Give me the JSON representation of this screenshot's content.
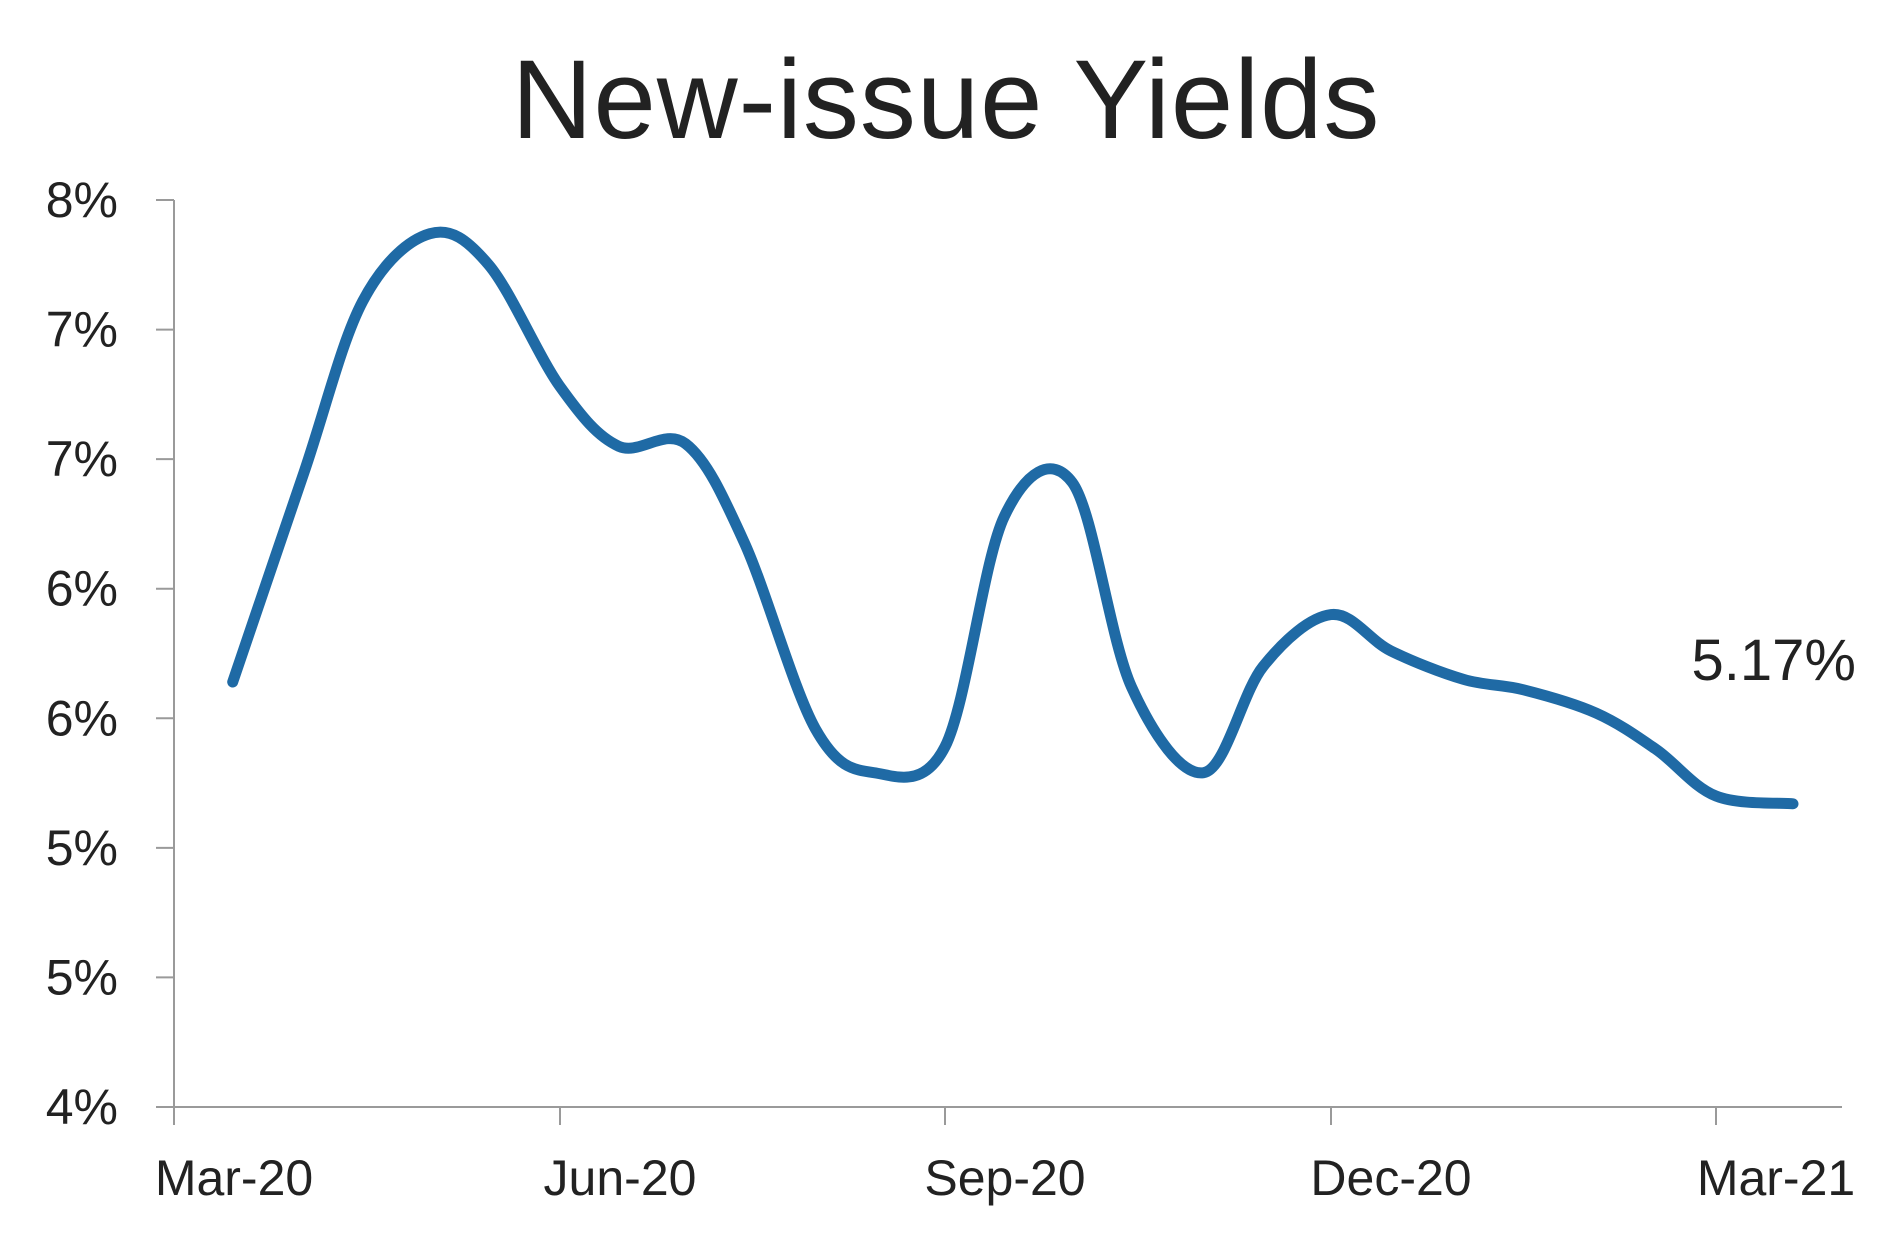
{
  "chart_data": {
    "type": "line",
    "title": "New-issue Yields",
    "xlabel": "",
    "ylabel": "",
    "x_ticks": [
      "Mar-20",
      "Jun-20",
      "Sep-20",
      "Dec-20",
      "Mar-21"
    ],
    "y_ticks": [
      "4%",
      "5%",
      "5%",
      "6%",
      "6%",
      "7%",
      "7%",
      "8%"
    ],
    "ylim": [
      4.0,
      7.5
    ],
    "grid": false,
    "legend": "none",
    "series_color": "#1f6aa5",
    "series": [
      {
        "name": "",
        "x": [
          "2020-03-15",
          "2020-04-01",
          "2020-04-15",
          "2020-05-01",
          "2020-05-15",
          "2020-06-01",
          "2020-06-15",
          "2020-07-01",
          "2020-07-15",
          "2020-08-01",
          "2020-08-15",
          "2020-09-01",
          "2020-09-15",
          "2020-10-01",
          "2020-10-15",
          "2020-11-01",
          "2020-11-15",
          "2020-12-01",
          "2020-12-15",
          "2021-01-01",
          "2021-01-15",
          "2021-02-01",
          "2021-02-15",
          "2021-03-01",
          "2021-03-19"
        ],
        "values": [
          5.64,
          6.45,
          7.11,
          7.37,
          7.25,
          6.78,
          6.55,
          6.56,
          6.18,
          5.46,
          5.29,
          5.39,
          6.28,
          6.41,
          5.62,
          5.29,
          5.7,
          5.9,
          5.76,
          5.65,
          5.61,
          5.52,
          5.38,
          5.2,
          5.17
        ]
      }
    ],
    "annotation": "5.17%"
  }
}
